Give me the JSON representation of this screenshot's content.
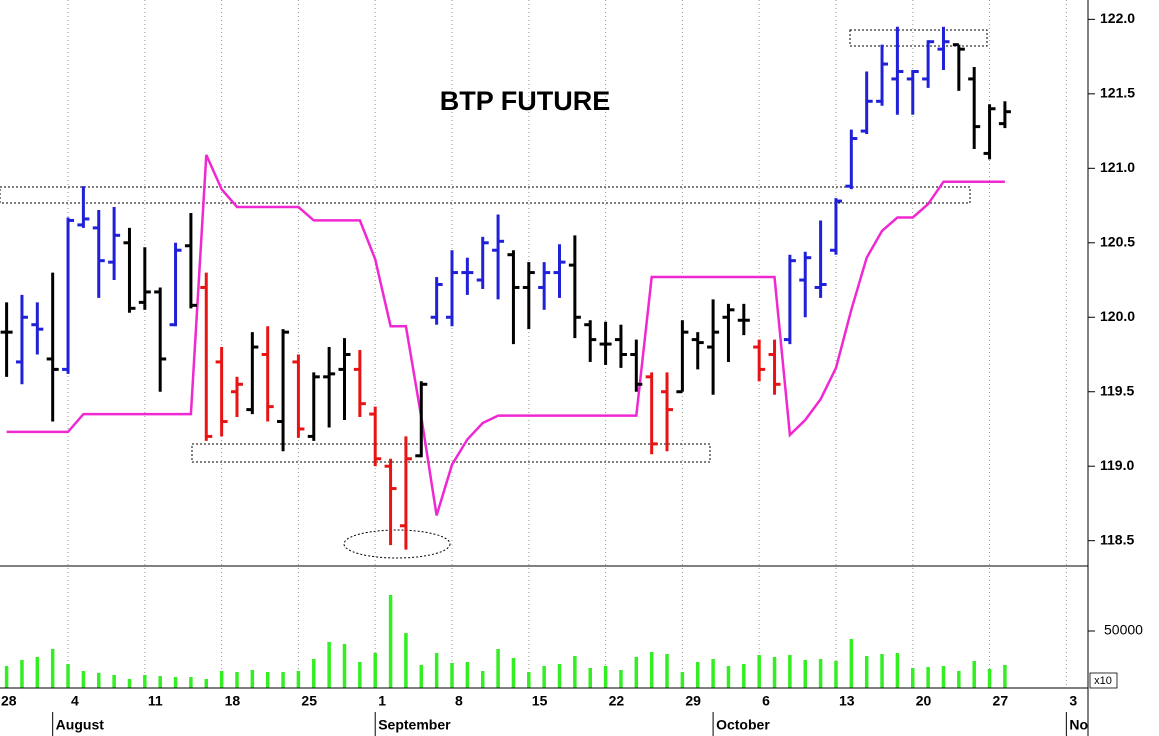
{
  "chart_data": [
    {
      "type": "ohlc",
      "title": "BTP FUTURE",
      "x": [
        -4,
        -3,
        -2,
        -1,
        0,
        1,
        2,
        3,
        4,
        5,
        6,
        7,
        8,
        9,
        10,
        11,
        12,
        13,
        14,
        15,
        16,
        17,
        18,
        19,
        20,
        21,
        22,
        23,
        24,
        25,
        26,
        27,
        28,
        29,
        30,
        31,
        32,
        33,
        34,
        35,
        36,
        37,
        38,
        39,
        40,
        41,
        42,
        43,
        44,
        45,
        46,
        47,
        48,
        49,
        50,
        51,
        52,
        53,
        54,
        55,
        56,
        57,
        58,
        59,
        60,
        61
      ],
      "open": [
        119.9,
        119.7,
        119.95,
        119.72,
        119.65,
        120.62,
        120.6,
        120.37,
        120.5,
        120.1,
        120.17,
        119.95,
        120.48,
        120.2,
        119.7,
        119.5,
        119.38,
        119.75,
        119.3,
        119.7,
        119.2,
        119.6,
        119.65,
        119.65,
        119.35,
        119.0,
        118.6,
        119.07,
        120.0,
        120.0,
        120.3,
        120.25,
        120.45,
        120.42,
        120.2,
        120.2,
        120.3,
        120.35,
        119.95,
        119.82,
        119.85,
        119.75,
        119.6,
        119.5,
        119.5,
        119.85,
        119.8,
        120.0,
        119.98,
        119.8,
        119.75,
        119.85,
        120.25,
        120.2,
        120.45,
        120.88,
        121.25,
        121.45,
        121.6,
        121.6,
        121.6,
        121.8,
        121.83,
        121.6,
        121.1,
        121.3
      ],
      "high": [
        120.1,
        120.15,
        120.1,
        120.3,
        120.67,
        120.88,
        120.72,
        120.74,
        120.6,
        120.47,
        120.2,
        120.5,
        120.7,
        120.3,
        119.8,
        119.6,
        119.9,
        119.94,
        119.92,
        119.75,
        119.63,
        119.8,
        119.86,
        119.78,
        119.4,
        119.05,
        119.2,
        119.57,
        120.27,
        120.45,
        120.4,
        120.54,
        120.69,
        120.45,
        120.37,
        120.37,
        120.49,
        120.55,
        119.98,
        119.97,
        119.95,
        119.85,
        119.63,
        119.63,
        119.98,
        119.9,
        120.12,
        120.09,
        120.09,
        119.85,
        119.85,
        120.42,
        120.44,
        120.65,
        120.8,
        121.26,
        121.65,
        121.83,
        121.95,
        121.66,
        121.86,
        121.95,
        121.83,
        121.68,
        121.43,
        121.45
      ],
      "low": [
        119.6,
        119.55,
        119.75,
        119.3,
        119.62,
        120.6,
        120.13,
        120.25,
        120.03,
        120.05,
        119.5,
        119.94,
        120.06,
        119.17,
        119.2,
        119.33,
        119.35,
        119.3,
        119.1,
        119.19,
        119.17,
        119.26,
        119.31,
        119.33,
        119.0,
        118.47,
        118.44,
        119.06,
        119.95,
        119.94,
        120.15,
        120.19,
        120.12,
        119.82,
        119.92,
        120.05,
        120.13,
        119.86,
        119.7,
        119.68,
        119.66,
        119.5,
        119.08,
        119.1,
        119.5,
        119.65,
        119.48,
        119.7,
        119.88,
        119.57,
        119.48,
        119.82,
        120.0,
        120.13,
        120.42,
        120.86,
        121.23,
        121.42,
        121.36,
        121.36,
        121.54,
        121.66,
        121.52,
        121.13,
        121.06,
        121.27
      ],
      "close": [
        119.9,
        120.0,
        119.92,
        119.65,
        120.65,
        120.66,
        120.38,
        120.55,
        120.06,
        120.17,
        119.72,
        120.45,
        120.08,
        119.2,
        119.3,
        119.55,
        119.8,
        119.4,
        119.9,
        119.25,
        119.6,
        119.62,
        119.75,
        119.42,
        119.05,
        118.85,
        119.05,
        119.55,
        120.22,
        120.3,
        120.3,
        120.5,
        120.51,
        120.2,
        120.3,
        120.3,
        120.37,
        120.0,
        119.85,
        119.82,
        119.75,
        119.55,
        119.15,
        119.38,
        119.9,
        119.83,
        119.9,
        120.05,
        119.98,
        119.65,
        119.55,
        120.38,
        120.4,
        120.22,
        120.78,
        121.2,
        121.45,
        121.7,
        121.65,
        121.65,
        121.85,
        121.85,
        121.8,
        121.28,
        121.4,
        121.38
      ],
      "colors": [
        "#000000",
        "#2020d8",
        "#2020d8",
        "#000000",
        "#2020d8",
        "#2020d8",
        "#2020d8",
        "#2020d8",
        "#000000",
        "#000000",
        "#000000",
        "#2020d8",
        "#000000",
        "#e81414",
        "#e81414",
        "#e81414",
        "#000000",
        "#e81414",
        "#000000",
        "#e81414",
        "#000000",
        "#000000",
        "#000000",
        "#e81414",
        "#e81414",
        "#e81414",
        "#e81414",
        "#000000",
        "#2020d8",
        "#2020d8",
        "#2020d8",
        "#2020d8",
        "#2020d8",
        "#000000",
        "#000000",
        "#2020d8",
        "#2020d8",
        "#000000",
        "#000000",
        "#000000",
        "#000000",
        "#000000",
        "#e81414",
        "#e81414",
        "#000000",
        "#000000",
        "#000000",
        "#000000",
        "#000000",
        "#e81414",
        "#e81414",
        "#2020d8",
        "#2020d8",
        "#2020d8",
        "#2020d8",
        "#2020d8",
        "#2020d8",
        "#2020d8",
        "#2020d8",
        "#2020d8",
        "#2020d8",
        "#2020d8",
        "#000000",
        "#000000",
        "#000000",
        "#000000"
      ],
      "stop_line": {
        "color": "#f028d2",
        "values": [
          119.23,
          119.23,
          119.23,
          119.23,
          119.23,
          119.35,
          119.35,
          119.35,
          119.35,
          119.35,
          119.35,
          119.35,
          119.35,
          121.09,
          120.86,
          120.74,
          120.74,
          120.74,
          120.74,
          120.74,
          120.65,
          120.65,
          120.65,
          120.65,
          120.39,
          119.94,
          119.94,
          119.33,
          118.67,
          119.01,
          119.18,
          119.29,
          119.34,
          119.34,
          119.34,
          119.34,
          119.34,
          119.34,
          119.34,
          119.34,
          119.34,
          119.34,
          120.27,
          120.27,
          120.27,
          120.27,
          120.27,
          120.27,
          120.27,
          120.27,
          120.27,
          119.21,
          119.31,
          119.45,
          119.66,
          120.05,
          120.4,
          120.58,
          120.67,
          120.67,
          120.76,
          120.91,
          120.91,
          120.91,
          120.91,
          120.91
        ]
      },
      "xlim": [
        -4.43,
        66.41
      ],
      "ylim": [
        118.33,
        122.13
      ],
      "yticks": [
        118.5,
        {
          "value": 119,
          "label": "119.0"
        },
        119.5,
        {
          "value": 120,
          "label": "120.0"
        },
        120.5,
        {
          "value": 121,
          "label": "121.0"
        },
        121.5,
        {
          "value": 122,
          "label": "122.0"
        }
      ]
    },
    {
      "type": "bar",
      "color": "#33ee22",
      "x": [
        -4,
        -3,
        -2,
        -1,
        0,
        1,
        2,
        3,
        4,
        5,
        6,
        7,
        8,
        9,
        10,
        11,
        12,
        13,
        14,
        15,
        16,
        17,
        18,
        19,
        20,
        21,
        22,
        23,
        24,
        25,
        26,
        27,
        28,
        29,
        30,
        31,
        32,
        33,
        34,
        35,
        36,
        37,
        38,
        39,
        40,
        41,
        42,
        43,
        44,
        45,
        46,
        47,
        48,
        49,
        50,
        51,
        52,
        53,
        54,
        55,
        56,
        57,
        58,
        59,
        60,
        61
      ],
      "values": [
        19300,
        24600,
        27200,
        34200,
        21100,
        14900,
        13200,
        11400,
        7900,
        11400,
        10500,
        9600,
        9600,
        7900,
        14900,
        14000,
        15800,
        14000,
        14000,
        14900,
        25400,
        40400,
        38600,
        22800,
        30700,
        81600,
        48200,
        20200,
        30700,
        21900,
        22800,
        14900,
        34200,
        26300,
        14000,
        19300,
        21100,
        28100,
        17500,
        19300,
        15800,
        27200,
        31600,
        29800,
        14000,
        22800,
        25400,
        19300,
        21100,
        28900,
        27200,
        28900,
        24600,
        25400,
        23700,
        43000,
        28100,
        29800,
        30700,
        17500,
        18400,
        19300,
        14900,
        23700,
        16700,
        20200
      ],
      "xlim": [
        -4.43,
        66.41
      ],
      "ylim": [
        0,
        107000
      ],
      "yticks": [
        50000
      ],
      "unit_label": "x10",
      "xticks": [
        {
          "value": -5,
          "label": "28"
        },
        {
          "value": 0,
          "label": "4"
        },
        {
          "value": 5,
          "label": "11"
        },
        {
          "value": 10,
          "label": "18"
        },
        {
          "value": 15,
          "label": "25"
        },
        {
          "value": 20,
          "label": "1"
        },
        {
          "value": 25,
          "label": "8"
        },
        {
          "value": 30,
          "label": "15"
        },
        {
          "value": 35,
          "label": "22"
        },
        {
          "value": 40,
          "label": "29"
        },
        {
          "value": 45,
          "label": "6"
        },
        {
          "value": 50,
          "label": "13"
        },
        {
          "value": 55,
          "label": "20"
        },
        {
          "value": 60,
          "label": "27"
        },
        {
          "value": 65,
          "label": "3"
        }
      ],
      "month_ticks": [
        {
          "value": -1,
          "label": "August"
        },
        {
          "value": 20,
          "label": "September"
        },
        {
          "value": 42,
          "label": "October"
        },
        {
          "value": 65,
          "label": "Nov"
        }
      ]
    }
  ]
}
